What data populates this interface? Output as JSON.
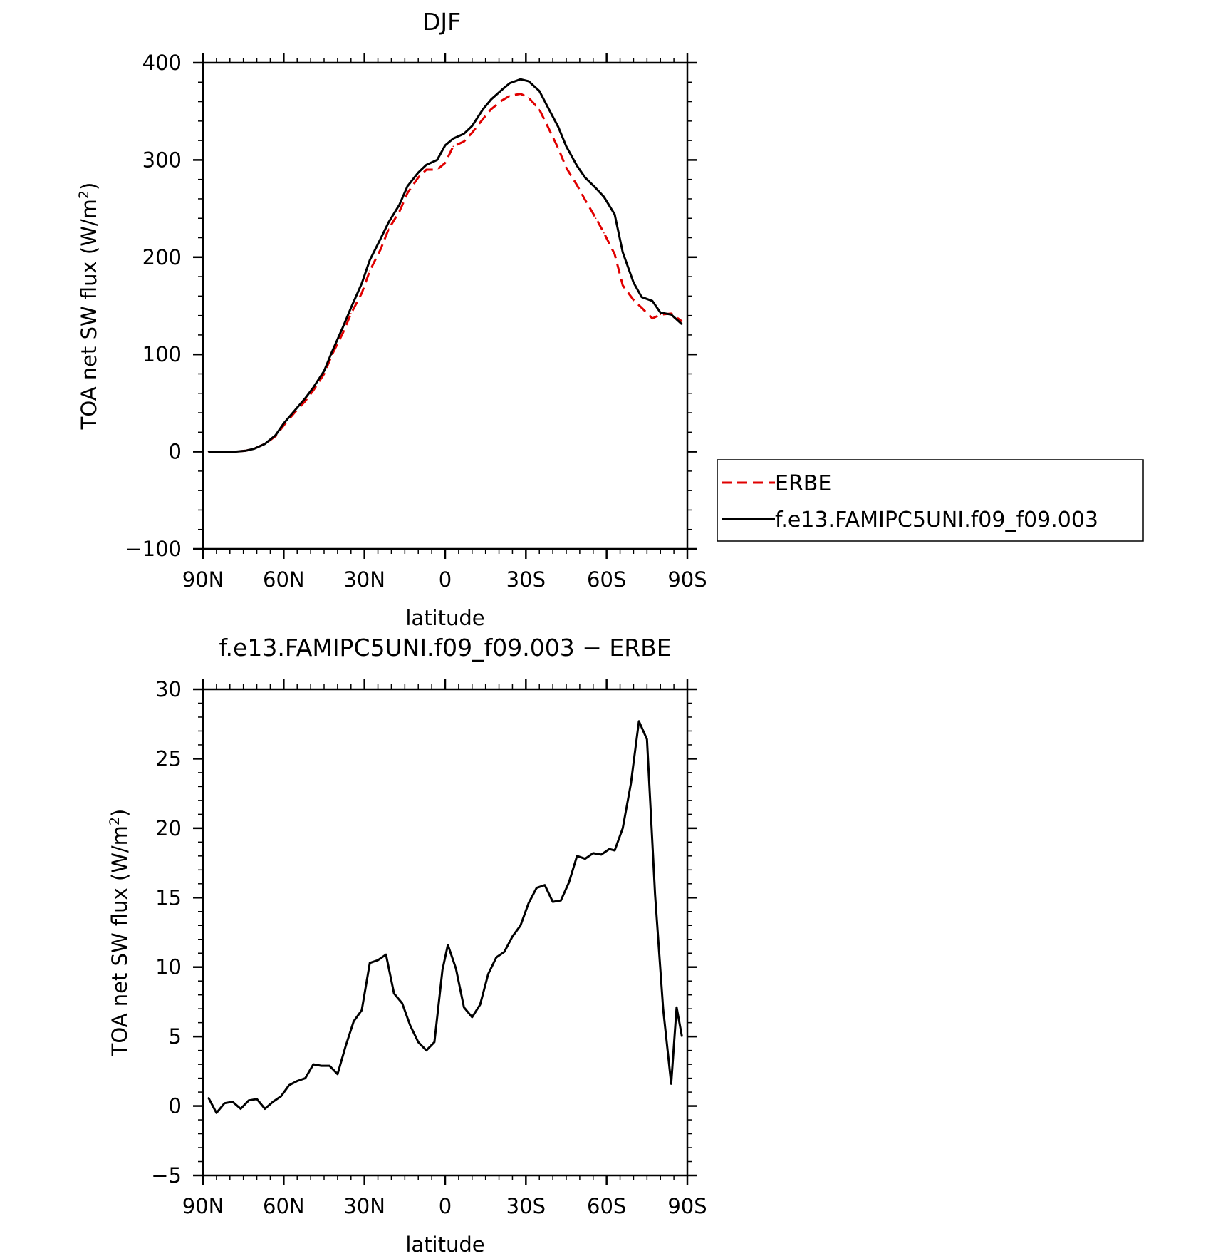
{
  "chart_data": [
    {
      "type": "line",
      "title": "DJF",
      "xlabel": "latitude",
      "ylabel": "TOA net SW flux (W/m",
      "ylabel_sup": "2",
      "ylabel_end": ")",
      "xlim": [
        -90,
        90
      ],
      "ylim": [
        -100,
        400
      ],
      "xticks": [
        -90,
        -60,
        -30,
        0,
        30,
        60,
        90
      ],
      "xtick_labels": [
        "90N",
        "60N",
        "30N",
        "0",
        "30S",
        "60S",
        "90S"
      ],
      "yticks": [
        -100,
        0,
        100,
        200,
        300,
        400
      ],
      "ytick_labels": [
        "−100",
        "0",
        "100",
        "200",
        "300",
        "400"
      ],
      "legend_position": "right",
      "series": [
        {
          "name": "ERBE",
          "color": "#e00000",
          "dash": true,
          "x": [
            -88,
            -85,
            -81,
            -78,
            -74,
            -71,
            -67,
            -63,
            -60,
            -56,
            -52,
            -49,
            -45,
            -42,
            -38,
            -35,
            -31,
            -28,
            -24,
            -21,
            -17,
            -14,
            -10,
            -7,
            -3,
            0,
            3,
            7,
            10,
            14,
            17,
            21,
            24,
            28,
            31,
            35,
            38,
            42,
            45,
            49,
            52,
            56,
            59,
            63,
            66,
            70,
            73,
            77,
            80,
            84,
            88
          ],
          "values": [
            0,
            0,
            0,
            0,
            1,
            3,
            8,
            16,
            27,
            40,
            52,
            63,
            80,
            100,
            122,
            142,
            163,
            186,
            208,
            229,
            247,
            266,
            282,
            290,
            290,
            297,
            314,
            319,
            328,
            342,
            352,
            361,
            366,
            368,
            364,
            352,
            335,
            312,
            292,
            274,
            259,
            240,
            225,
            203,
            171,
            156,
            148,
            137,
            141,
            142,
            134
          ]
        },
        {
          "name": "f.e13.FAMIPC5UNI.f09_f09.003",
          "color": "#000000",
          "dash": false,
          "x": [
            -88,
            -85,
            -81,
            -78,
            -74,
            -71,
            -67,
            -63,
            -60,
            -56,
            -52,
            -49,
            -45,
            -42,
            -38,
            -35,
            -31,
            -28,
            -24,
            -21,
            -17,
            -14,
            -10,
            -7,
            -3,
            0,
            3,
            7,
            10,
            14,
            17,
            21,
            24,
            28,
            31,
            35,
            38,
            42,
            45,
            49,
            52,
            56,
            59,
            63,
            66,
            70,
            73,
            77,
            80,
            84,
            88
          ],
          "values": [
            0,
            0,
            0,
            0,
            1,
            3,
            8,
            17,
            29,
            42,
            55,
            66,
            83,
            103,
            128,
            148,
            173,
            197,
            219,
            236,
            254,
            273,
            287,
            295,
            300,
            315,
            322,
            327,
            335,
            352,
            362,
            372,
            379,
            383,
            381,
            371,
            355,
            334,
            314,
            294,
            282,
            271,
            262,
            244,
            205,
            174,
            159,
            155,
            143,
            141,
            131
          ]
        }
      ]
    },
    {
      "type": "line",
      "title": "f.e13.FAMIPC5UNI.f09_f09.003 − ERBE",
      "xlabel": "latitude",
      "ylabel": "TOA net SW flux (W/m",
      "ylabel_sup": "2",
      "ylabel_end": ")",
      "xlim": [
        -90,
        90
      ],
      "ylim": [
        -5,
        30
      ],
      "xticks": [
        -90,
        -60,
        -30,
        0,
        30,
        60,
        90
      ],
      "xtick_labels": [
        "90N",
        "60N",
        "30N",
        "0",
        "30S",
        "60S",
        "90S"
      ],
      "yticks": [
        -5,
        0,
        5,
        10,
        15,
        20,
        25,
        30
      ],
      "ytick_labels": [
        "−5",
        "0",
        "5",
        "10",
        "15",
        "20",
        "25",
        "30"
      ],
      "series": [
        {
          "color": "#000000",
          "dash": false,
          "x": [
            -88,
            -85,
            -82,
            -79,
            -76,
            -73,
            -70,
            -67,
            -64,
            -61,
            -58,
            -55,
            -52,
            -49,
            -46,
            -43,
            -40,
            -37,
            -34,
            -31,
            -28,
            -25,
            -22,
            -19,
            -16,
            -13,
            -10,
            -7,
            -4,
            -1,
            1,
            4,
            7,
            10,
            13,
            16,
            19,
            22,
            25,
            28,
            31,
            34,
            37,
            40,
            43,
            46,
            49,
            52,
            55,
            58,
            61,
            63,
            66,
            69,
            72,
            75,
            78,
            81,
            84,
            86,
            88
          ],
          "values": [
            0.6,
            -0.5,
            0.2,
            0.3,
            -0.2,
            0.4,
            0.5,
            -0.2,
            0.3,
            0.7,
            1.5,
            1.8,
            2.0,
            3.0,
            2.9,
            2.9,
            2.3,
            4.3,
            6.1,
            6.9,
            10.3,
            10.5,
            10.9,
            8.1,
            7.4,
            5.8,
            4.6,
            4.0,
            4.6,
            9.8,
            11.6,
            9.9,
            7.1,
            6.4,
            7.3,
            9.5,
            10.7,
            11.1,
            12.2,
            13.0,
            14.6,
            15.7,
            15.9,
            14.7,
            14.8,
            16.1,
            18.0,
            17.8,
            18.2,
            18.1,
            18.5,
            18.4,
            20.0,
            23.2,
            27.7,
            26.4,
            15.2,
            7.0,
            1.6,
            7.1,
            5.0
          ]
        }
      ]
    }
  ]
}
